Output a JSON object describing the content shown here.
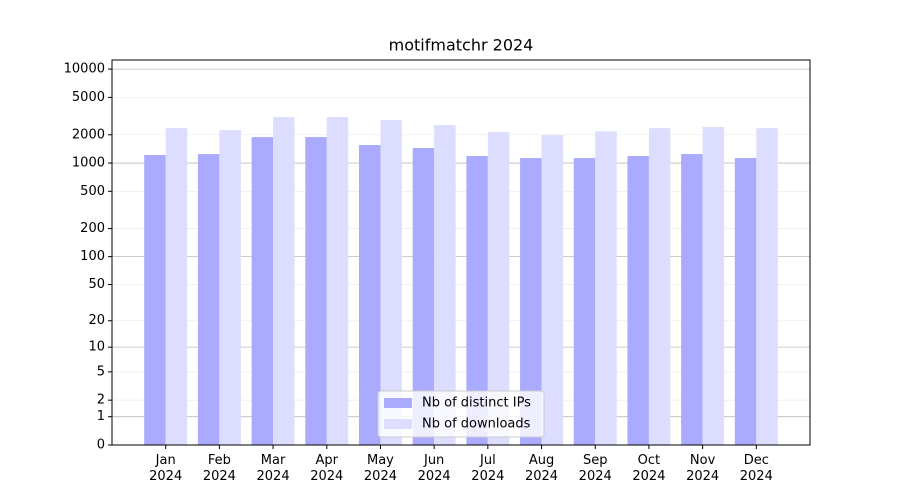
{
  "chart_data": {
    "type": "bar",
    "title": "motifmatchr 2024",
    "categories": [
      "Jan\n2024",
      "Feb\n2024",
      "Mar\n2024",
      "Apr\n2024",
      "May\n2024",
      "Jun\n2024",
      "Jul\n2024",
      "Aug\n2024",
      "Sep\n2024",
      "Oct\n2024",
      "Nov\n2024",
      "Dec\n2024"
    ],
    "series": [
      {
        "name": "Nb of distinct IPs",
        "color": "#aaaaff",
        "values": [
          1217,
          1247,
          1890,
          1890,
          1555,
          1445,
          1187,
          1130,
          1130,
          1187,
          1247,
          1130
        ]
      },
      {
        "name": "Nb of downloads",
        "color": "#ddddff",
        "values": [
          2357,
          2245,
          3085,
          3085,
          2867,
          2535,
          2137,
          1986,
          2180,
          2357,
          2420,
          2357
        ]
      }
    ],
    "scale": "log1p",
    "ylim": [
      0,
      12500
    ],
    "yticks": [
      0,
      1,
      2,
      5,
      10,
      20,
      50,
      100,
      200,
      500,
      1000,
      2000,
      5000,
      10000
    ],
    "grid": true,
    "legend": "lower center"
  }
}
